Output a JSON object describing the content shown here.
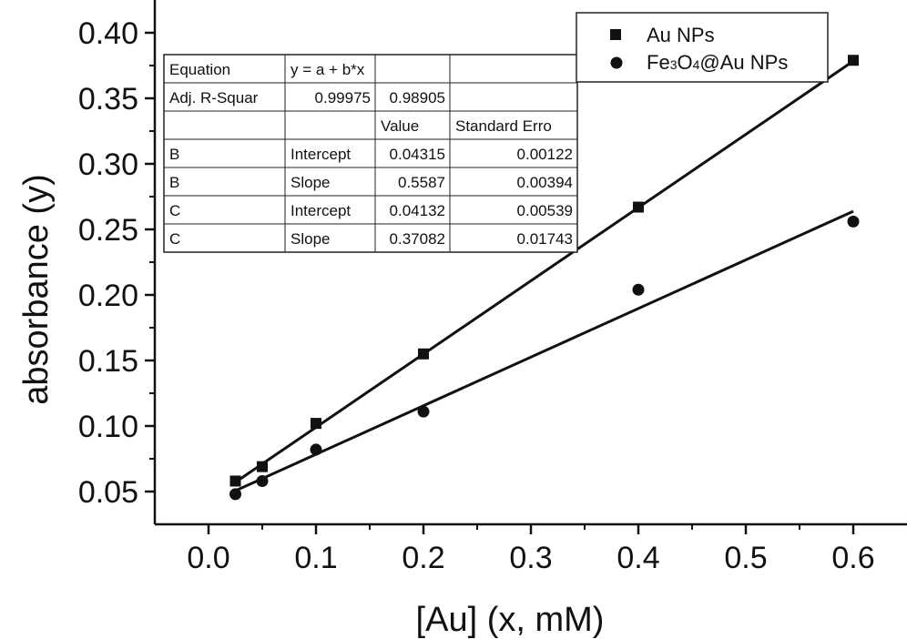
{
  "chart_data": {
    "type": "scatter",
    "xlabel": "[Au] (x, mM)",
    "ylabel": "absorbance (y)",
    "xlim": [
      -0.05,
      0.65
    ],
    "ylim": [
      0.025,
      0.425
    ],
    "xticks": [
      "0.0",
      "0.1",
      "0.2",
      "0.3",
      "0.4",
      "0.5",
      "0.6"
    ],
    "yticks": [
      "0.05",
      "0.10",
      "0.15",
      "0.20",
      "0.25",
      "0.30",
      "0.35",
      "0.40"
    ],
    "grid": false,
    "legend_position": "top-right",
    "series": [
      {
        "name": "Au NPs",
        "marker": "square",
        "x": [
          0.025,
          0.05,
          0.1,
          0.2,
          0.4,
          0.6
        ],
        "y": [
          0.058,
          0.069,
          0.102,
          0.155,
          0.267,
          0.379
        ],
        "fit": {
          "intercept": 0.04315,
          "slope": 0.5587
        }
      },
      {
        "name_parts": [
          "Fe",
          "3",
          "O",
          "4",
          "@Au NPs"
        ],
        "marker": "circle",
        "x": [
          0.025,
          0.05,
          0.1,
          0.2,
          0.4,
          0.6
        ],
        "y": [
          0.048,
          0.058,
          0.082,
          0.111,
          0.204,
          0.256
        ],
        "fit": {
          "intercept": 0.04132,
          "slope": 0.37082
        }
      }
    ],
    "fit_table": [
      [
        "Equation",
        "y = a + b*x",
        "",
        ""
      ],
      [
        "Adj. R-Squar",
        "0.99975",
        "0.98905",
        ""
      ],
      [
        "",
        "",
        "Value",
        "Standard Erro"
      ],
      [
        "B",
        "Intercept",
        "0.04315",
        "0.00122"
      ],
      [
        "B",
        "Slope",
        "0.5587",
        "0.00394"
      ],
      [
        "C",
        "Intercept",
        "0.04132",
        "0.00539"
      ],
      [
        "C",
        "Slope",
        "0.37082",
        "0.01743"
      ]
    ]
  }
}
